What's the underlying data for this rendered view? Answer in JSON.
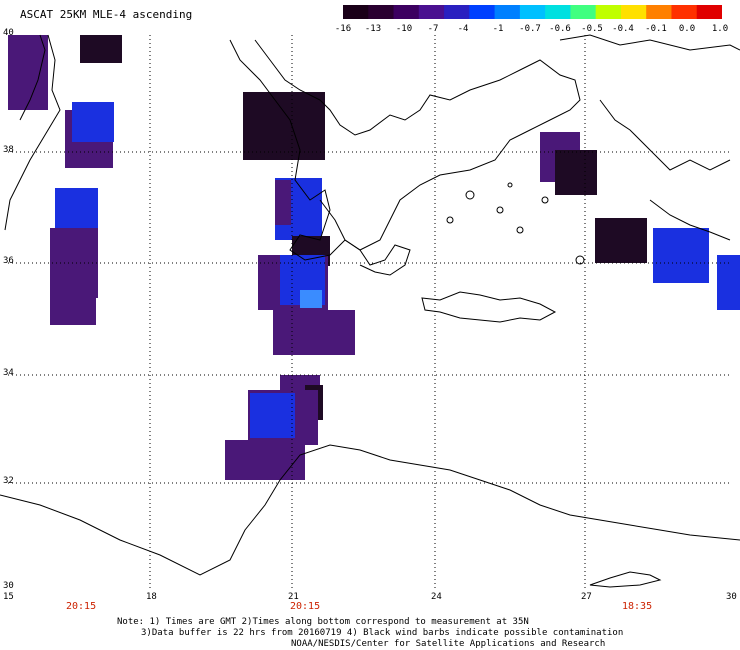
{
  "title": "ASCAT 25KM MLE-4 ascending",
  "scale": {
    "ticks": [
      "-16",
      "-13",
      "-10",
      "-7",
      "-4",
      "-1",
      "-0.7",
      "-0.6",
      "-0.5",
      "-0.4",
      "-0.1",
      "0.0",
      "1.0"
    ],
    "colors": [
      "#1a0018",
      "#2a0030",
      "#3c0060",
      "#4a1090",
      "#2a20c0",
      "#0040ff",
      "#0080ff",
      "#00c0ff",
      "#00e0e0",
      "#40ff80",
      "#c0ff00",
      "#ffe000",
      "#ff8000",
      "#ff3000",
      "#e00000"
    ]
  },
  "map": {
    "lon_ticks": [
      "15",
      "18",
      "21",
      "24",
      "27",
      "30"
    ],
    "lat_ticks": [
      "40",
      "38",
      "36",
      "34",
      "32",
      "30"
    ],
    "times": [
      "20:15",
      "20:15",
      "18:35"
    ],
    "colors": {
      "coast": "#000000",
      "grid": "#000000",
      "deep": "#1e0a24",
      "purple": "#4a1878",
      "blue": "#1a30e0",
      "lightblue": "#3a8cff"
    }
  },
  "notes": {
    "line1": "Note: 1) Times are GMT 2)Times along bottom correspond to measurement at 35N",
    "line2": "3)Data buffer is 22 hrs from 20160719 4) Black wind barbs indicate possible contamination",
    "line3": "NOAA/NESDIS/Center for Satellite Applications and Research"
  }
}
